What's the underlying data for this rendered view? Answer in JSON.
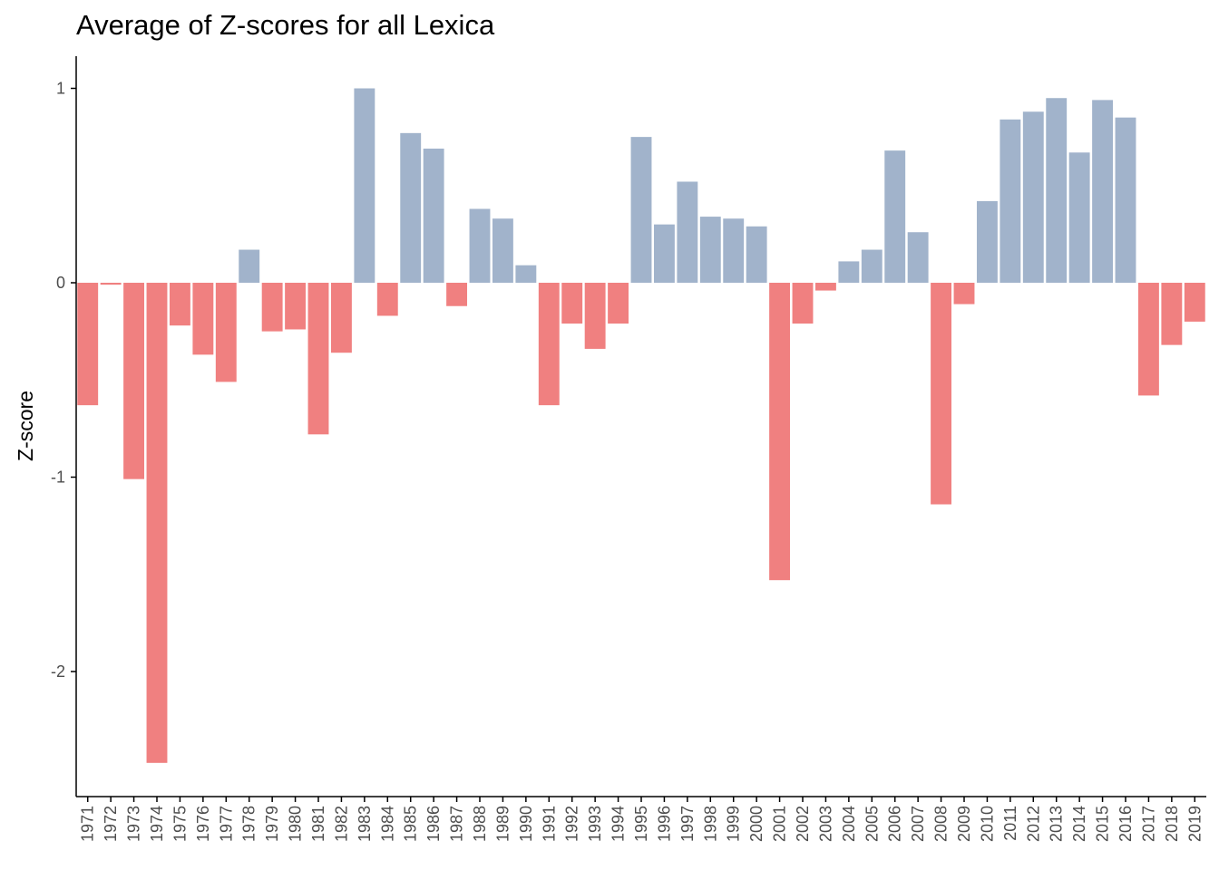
{
  "chart_data": {
    "type": "bar",
    "title": "Average of Z-scores for all Lexica",
    "xlabel": "",
    "ylabel": "Z-score",
    "ylim": [
      -2.5,
      1.13
    ],
    "yticks": [
      1,
      0,
      -1,
      -2
    ],
    "ytick_labels": [
      "1",
      "0",
      "-1",
      "-2"
    ],
    "grid": false,
    "legend": "none",
    "colors": {
      "positive": "#a1b3cb",
      "negative": "#f08080",
      "axis": "#000000",
      "tick_text": "#4d4d4d"
    },
    "categories": [
      "1971",
      "1972",
      "1973",
      "1974",
      "1975",
      "1976",
      "1977",
      "1978",
      "1979",
      "1980",
      "1981",
      "1982",
      "1983",
      "1984",
      "1985",
      "1986",
      "1987",
      "1988",
      "1989",
      "1990",
      "1991",
      "1992",
      "1993",
      "1994",
      "1995",
      "1996",
      "1997",
      "1998",
      "1999",
      "2000",
      "2001",
      "2002",
      "2003",
      "2004",
      "2005",
      "2006",
      "2007",
      "2008",
      "2009",
      "2010",
      "2011",
      "2012",
      "2013",
      "2014",
      "2015",
      "2016",
      "2017",
      "2018",
      "2019"
    ],
    "values": [
      -0.63,
      -0.01,
      -1.01,
      -2.47,
      -0.22,
      -0.37,
      -0.51,
      0.17,
      -0.25,
      -0.24,
      -0.78,
      -0.36,
      1.0,
      -0.17,
      0.77,
      0.69,
      -0.12,
      0.38,
      0.33,
      0.09,
      -0.63,
      -0.21,
      -0.34,
      -0.21,
      0.75,
      0.3,
      0.52,
      0.34,
      0.33,
      0.29,
      -1.53,
      -0.21,
      -0.04,
      0.11,
      0.17,
      0.68,
      0.26,
      -1.14,
      -0.11,
      0.42,
      0.84,
      0.88,
      0.95,
      0.67,
      0.94,
      0.85,
      -0.58,
      -0.32,
      -0.2
    ]
  }
}
